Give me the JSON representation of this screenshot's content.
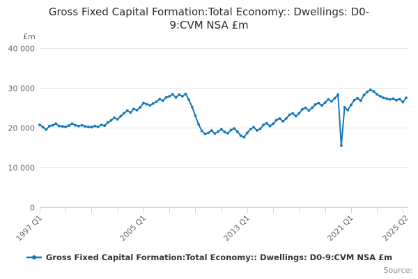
{
  "page": {
    "title": "Gross Fixed Capital Formation:Total Economy:: Dwellings: D0-9:CVM NSA £m",
    "source_label": "Source:"
  },
  "legend": {
    "label": "Gross Fixed Capital Formation:Total Economy:: Dwellings: D0-9:CVM NSA £m"
  },
  "colors": {
    "series": "#1776b8",
    "axis_line": "#ccd6eb",
    "gridline": "#e6e6e6",
    "tick_label": "#666666"
  },
  "chart_data": {
    "type": "line",
    "title": "Gross Fixed Capital Formation:Total Economy:: Dwellings: D0-9:CVM NSA £m",
    "unit_label": "£m",
    "grid": true,
    "legend_position": "bottom",
    "x_axis": {
      "start": "1997 Q1",
      "end": "2025 Q2",
      "frequency": "quarterly",
      "tick_every_quarters": 8,
      "labels": [
        "1997 Q1",
        "2005 Q1",
        "2013 Q1",
        "2021 Q1",
        "2025 Q2"
      ],
      "label_positions_quarters": [
        0,
        32,
        64,
        96,
        113
      ]
    },
    "y_axis": {
      "min": 0,
      "max": 40000,
      "tick_interval": 10000,
      "tick_labels": [
        "0",
        "10 000",
        "20 000",
        "30 000",
        "40 000"
      ],
      "title": "£m"
    },
    "series": [
      {
        "name": "Gross Fixed Capital Formation:Total Economy:: Dwellings: D0-9:CVM NSA £m",
        "values": [
          20700,
          20100,
          19500,
          20400,
          20600,
          21000,
          20400,
          20300,
          20200,
          20500,
          21000,
          20600,
          20400,
          20600,
          20300,
          20200,
          20100,
          20400,
          20200,
          20700,
          20500,
          21300,
          21800,
          22500,
          22100,
          22900,
          23600,
          24300,
          23800,
          24700,
          24400,
          25100,
          26200,
          25900,
          25600,
          26100,
          26500,
          27200,
          26800,
          27600,
          27900,
          28400,
          27600,
          28300,
          27900,
          28500,
          27000,
          25200,
          23000,
          20800,
          19200,
          18400,
          18700,
          19300,
          18500,
          19000,
          19600,
          18900,
          18600,
          19400,
          19800,
          19000,
          18000,
          17600,
          18700,
          19600,
          20100,
          19300,
          19700,
          20700,
          21100,
          20400,
          21000,
          21900,
          22300,
          21600,
          22300,
          23200,
          23600,
          22900,
          23600,
          24600,
          25000,
          24300,
          25000,
          25800,
          26200,
          25600,
          26300,
          27100,
          26600,
          27400,
          28300,
          15500,
          25100,
          24400,
          25700,
          26900,
          27400,
          26800,
          28200,
          29000,
          29500,
          29100,
          28400,
          27900,
          27500,
          27300,
          27100,
          27300,
          26900,
          27200,
          26400,
          27500
        ]
      }
    ]
  }
}
